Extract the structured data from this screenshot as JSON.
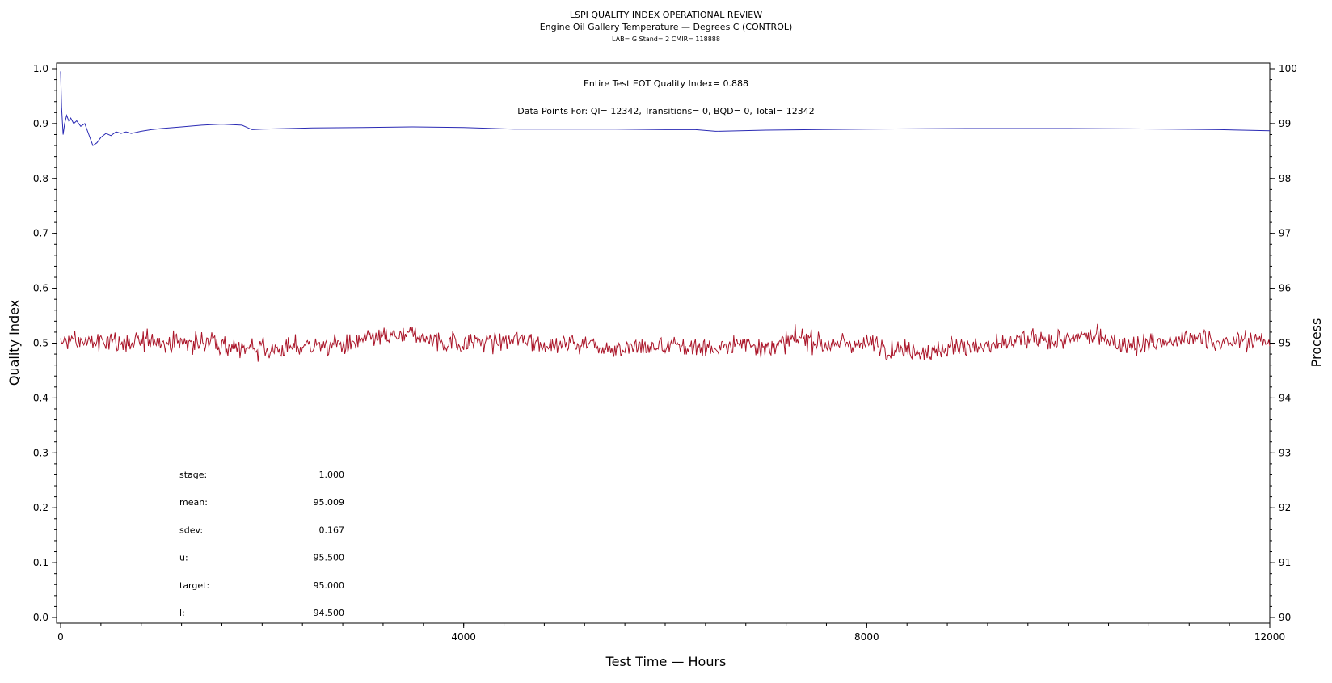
{
  "chart_data": {
    "type": "line",
    "title": "LSPI QUALITY INDEX OPERATIONAL REVIEW",
    "subtitle": "Engine Oil Gallery Temperature — Degrees C (CONTROL)",
    "subsubtitle": "LAB= G Stand= 2 CMIR= 118888",
    "xlabel": "Test Time — Hours",
    "ylabel": "Quality Index",
    "y2label": "Process",
    "xlim": [
      0,
      12000
    ],
    "ylim": [
      0,
      1.0
    ],
    "y2lim": [
      90,
      100
    ],
    "x_ticks": [
      "0",
      "4000",
      "8000",
      "12000"
    ],
    "y_ticks": [
      "0.0",
      "0.1",
      "0.2",
      "0.3",
      "0.4",
      "0.5",
      "0.6",
      "0.7",
      "0.8",
      "0.9",
      "1.0"
    ],
    "y2_ticks": [
      "90",
      "91",
      "92",
      "93",
      "94",
      "95",
      "96",
      "97",
      "98",
      "99",
      "100"
    ],
    "annotations": [
      "Entire Test EOT Quality Index=   0.888",
      "Data Points For: QI= 12342, Transitions=     0, BQD=     0, Total= 12342"
    ],
    "stats": [
      {
        "label": "stage:",
        "value": "1.000"
      },
      {
        "label": "mean:",
        "value": "95.009"
      },
      {
        "label": "sdev:",
        "value": "0.167"
      },
      {
        "label": "u:",
        "value": "95.500"
      },
      {
        "label": "target:",
        "value": "95.000"
      },
      {
        "label": "l:",
        "value": "94.500"
      }
    ],
    "series": [
      {
        "axis": "left",
        "color": "#2a2ab4",
        "x": [
          0,
          10,
          25,
          40,
          60,
          80,
          100,
          130,
          160,
          200,
          240,
          280,
          320,
          360,
          400,
          450,
          500,
          550,
          600,
          650,
          700,
          800,
          900,
          1000,
          1200,
          1400,
          1600,
          1800,
          1900,
          2000,
          2500,
          3000,
          3500,
          4000,
          4500,
          5000,
          5500,
          6000,
          6300,
          6500,
          7000,
          8000,
          9000,
          10000,
          11000,
          11500,
          12000
        ],
        "values": [
          0.995,
          0.93,
          0.88,
          0.9,
          0.915,
          0.905,
          0.91,
          0.9,
          0.905,
          0.895,
          0.9,
          0.88,
          0.86,
          0.865,
          0.875,
          0.882,
          0.878,
          0.885,
          0.882,
          0.885,
          0.882,
          0.886,
          0.889,
          0.891,
          0.894,
          0.897,
          0.899,
          0.897,
          0.889,
          0.89,
          0.892,
          0.893,
          0.894,
          0.893,
          0.89,
          0.89,
          0.89,
          0.889,
          0.889,
          0.886,
          0.888,
          0.89,
          0.891,
          0.891,
          0.89,
          0.889,
          0.887
        ]
      },
      {
        "axis": "right",
        "color": "#aa1428",
        "x_start": 0,
        "x_end": 12000,
        "x_step": 10,
        "mean": 95.009,
        "sdev": 0.167,
        "range": [
          94.35,
          95.72
        ]
      }
    ]
  }
}
